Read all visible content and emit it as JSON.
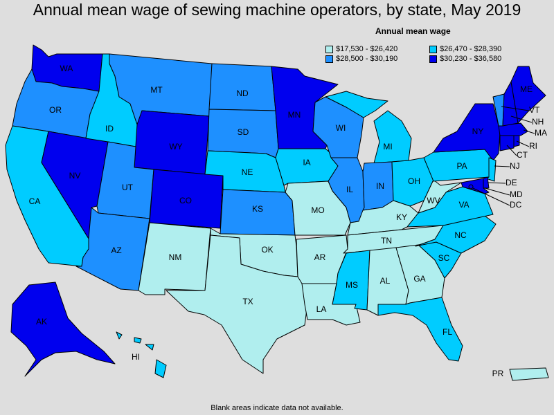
{
  "title": "Annual mean wage of sewing machine operators, by state, May 2019",
  "legend": {
    "title": "Annual mean wage",
    "bins": [
      {
        "label": "$17,530 - $26,420",
        "color": "#b0eeee"
      },
      {
        "label": "$26,470 - $28,390",
        "color": "#00ccff"
      },
      {
        "label": "$28,500 - $30,190",
        "color": "#1e90ff"
      },
      {
        "label": "$30,230 - $36,580",
        "color": "#0000ee"
      }
    ]
  },
  "footnote": "Blank areas indicate data not available.",
  "states": {
    "WA": {
      "label": "WA",
      "bin": 3
    },
    "OR": {
      "label": "OR",
      "bin": 2
    },
    "CA": {
      "label": "CA",
      "bin": 1
    },
    "NV": {
      "label": "NV",
      "bin": 3
    },
    "ID": {
      "label": "ID",
      "bin": 1
    },
    "MT": {
      "label": "MT",
      "bin": 2
    },
    "WY": {
      "label": "WY",
      "bin": 3
    },
    "UT": {
      "label": "UT",
      "bin": 2
    },
    "AZ": {
      "label": "AZ",
      "bin": 2
    },
    "CO": {
      "label": "CO",
      "bin": 3
    },
    "NM": {
      "label": "NM",
      "bin": 0
    },
    "ND": {
      "label": "ND",
      "bin": 2
    },
    "SD": {
      "label": "SD",
      "bin": 2
    },
    "NE": {
      "label": "NE",
      "bin": 1
    },
    "KS": {
      "label": "KS",
      "bin": 2
    },
    "OK": {
      "label": "OK",
      "bin": 0
    },
    "TX": {
      "label": "TX",
      "bin": 0
    },
    "MN": {
      "label": "MN",
      "bin": 3
    },
    "IA": {
      "label": "IA",
      "bin": 1
    },
    "MO": {
      "label": "MO",
      "bin": 0
    },
    "AR": {
      "label": "AR",
      "bin": 0
    },
    "LA": {
      "label": "LA",
      "bin": 0
    },
    "WI": {
      "label": "WI",
      "bin": 2
    },
    "IL": {
      "label": "IL",
      "bin": 2
    },
    "MI": {
      "label": "MI",
      "bin": 1
    },
    "IN": {
      "label": "IN",
      "bin": 2
    },
    "OH": {
      "label": "OH",
      "bin": 1
    },
    "KY": {
      "label": "KY",
      "bin": 0
    },
    "TN": {
      "label": "TN",
      "bin": 0
    },
    "MS": {
      "label": "MS",
      "bin": 1
    },
    "AL": {
      "label": "AL",
      "bin": 0
    },
    "GA": {
      "label": "GA",
      "bin": 0
    },
    "FL": {
      "label": "FL",
      "bin": 1
    },
    "SC": {
      "label": "SC",
      "bin": 1
    },
    "NC": {
      "label": "NC",
      "bin": 1
    },
    "VA": {
      "label": "VA",
      "bin": 1
    },
    "WV": {
      "label": "WV",
      "bin": 0
    },
    "PA": {
      "label": "PA",
      "bin": 1
    },
    "NY": {
      "label": "NY",
      "bin": 3
    },
    "VT": {
      "label": "VT",
      "bin": 2
    },
    "NH": {
      "label": "NH",
      "bin": 3
    },
    "ME": {
      "label": "ME",
      "bin": 3
    },
    "MA": {
      "label": "MA",
      "bin": 3
    },
    "RI": {
      "label": "RI",
      "bin": 3
    },
    "CT": {
      "label": "CT",
      "bin": 3
    },
    "NJ": {
      "label": "NJ",
      "bin": 1
    },
    "DE": {
      "label": "DE",
      "bin": 3
    },
    "MD": {
      "label": "MD",
      "bin": 3
    },
    "DC": {
      "label": "DC",
      "bin": 3
    },
    "AK": {
      "label": "AK",
      "bin": 3
    },
    "HI": {
      "label": "HI",
      "bin": 1
    },
    "PR": {
      "label": "PR",
      "bin": 0
    }
  }
}
